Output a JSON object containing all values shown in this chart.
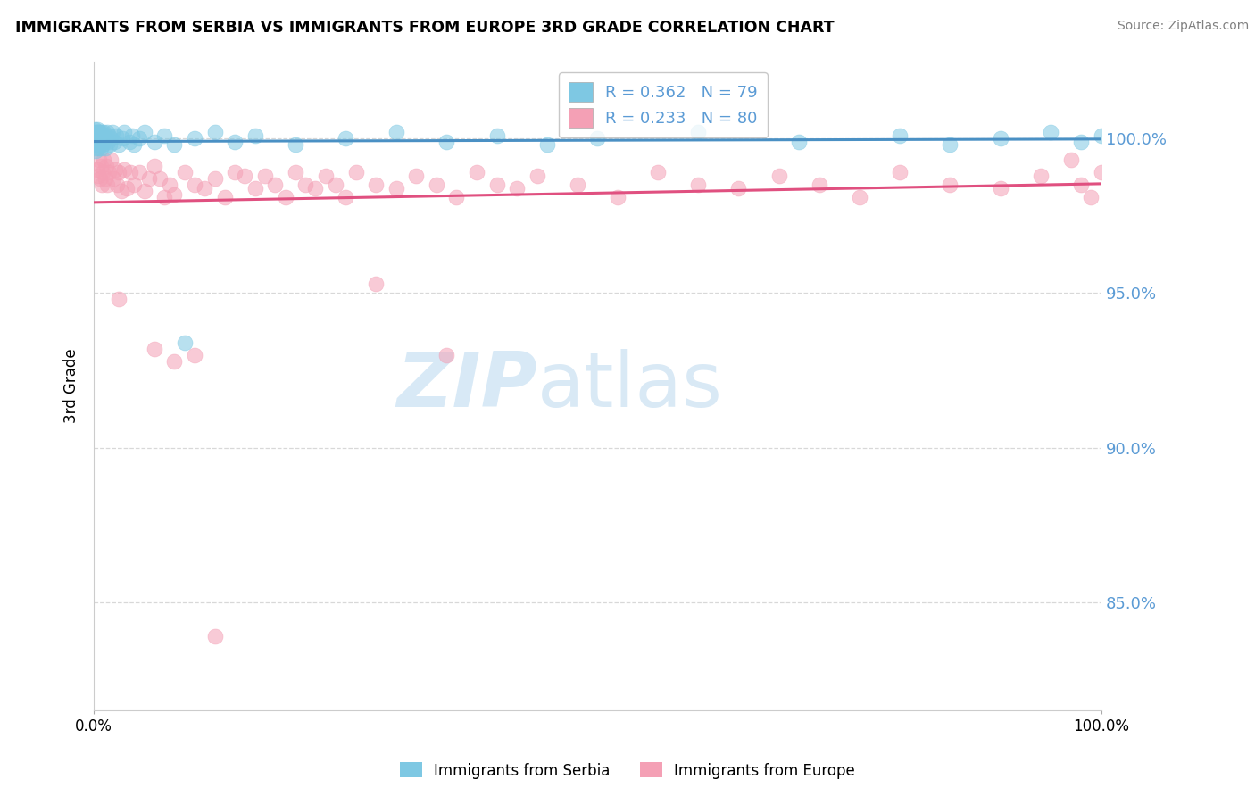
{
  "title": "IMMIGRANTS FROM SERBIA VS IMMIGRANTS FROM EUROPE 3RD GRADE CORRELATION CHART",
  "source": "Source: ZipAtlas.com",
  "ylabel": "3rd Grade",
  "legend_blue_label": "Immigrants from Serbia",
  "legend_pink_label": "Immigrants from Europe",
  "R_blue": 0.362,
  "N_blue": 79,
  "R_pink": 0.233,
  "N_pink": 80,
  "blue_color": "#7ec8e3",
  "pink_color": "#f4a0b5",
  "blue_line_color": "#4a90c4",
  "pink_line_color": "#e05080",
  "ylim": [
    0.815,
    1.025
  ],
  "xlim": [
    0.0,
    1.0
  ],
  "ytick_vals": [
    0.85,
    0.9,
    0.95,
    1.0
  ],
  "ytick_labels": [
    "85.0%",
    "90.0%",
    "95.0%",
    "100.0%"
  ],
  "grid_color": "#d8d8d8",
  "watermark_ZIP": "ZIP",
  "watermark_atlas": "atlas",
  "blue_x": [
    0.001,
    0.001,
    0.001,
    0.001,
    0.001,
    0.002,
    0.002,
    0.002,
    0.002,
    0.002,
    0.002,
    0.003,
    0.003,
    0.003,
    0.003,
    0.003,
    0.003,
    0.004,
    0.004,
    0.004,
    0.004,
    0.004,
    0.005,
    0.005,
    0.005,
    0.005,
    0.006,
    0.006,
    0.006,
    0.007,
    0.007,
    0.007,
    0.008,
    0.008,
    0.009,
    0.009,
    0.01,
    0.01,
    0.011,
    0.012,
    0.013,
    0.014,
    0.015,
    0.016,
    0.017,
    0.018,
    0.02,
    0.022,
    0.025,
    0.028,
    0.03,
    0.035,
    0.038,
    0.04,
    0.045,
    0.05,
    0.06,
    0.07,
    0.08,
    0.09,
    0.1,
    0.12,
    0.14,
    0.16,
    0.2,
    0.25,
    0.3,
    0.35,
    0.4,
    0.45,
    0.5,
    0.6,
    0.7,
    0.8,
    0.85,
    0.9,
    0.95,
    0.98,
    1.0
  ],
  "blue_y": [
    0.998,
    1.002,
    0.999,
    1.001,
    1.003,
    0.997,
    1.0,
    1.002,
    0.999,
    1.001,
    0.996,
    1.0,
    1.002,
    0.998,
    1.001,
    0.999,
    1.003,
    0.998,
    1.001,
    0.999,
    1.002,
    0.997,
    1.0,
    1.002,
    0.999,
    1.001,
    0.998,
    1.0,
    1.002,
    0.999,
    1.001,
    0.997,
    1.0,
    1.002,
    0.998,
    1.001,
    0.999,
    1.002,
    0.997,
    1.0,
    1.002,
    0.999,
    1.001,
    0.998,
    1.0,
    1.002,
    0.999,
    1.001,
    0.998,
    1.0,
    1.002,
    0.999,
    1.001,
    0.998,
    1.0,
    1.002,
    0.999,
    1.001,
    0.998,
    0.934,
    1.0,
    1.002,
    0.999,
    1.001,
    0.998,
    1.0,
    1.002,
    0.999,
    1.001,
    0.998,
    1.0,
    1.002,
    0.999,
    1.001,
    0.998,
    1.0,
    1.002,
    0.999,
    1.001
  ],
  "pink_x": [
    0.003,
    0.004,
    0.005,
    0.006,
    0.007,
    0.008,
    0.009,
    0.01,
    0.011,
    0.012,
    0.013,
    0.015,
    0.017,
    0.019,
    0.021,
    0.023,
    0.025,
    0.027,
    0.03,
    0.033,
    0.036,
    0.04,
    0.045,
    0.05,
    0.055,
    0.06,
    0.065,
    0.07,
    0.075,
    0.08,
    0.09,
    0.1,
    0.11,
    0.12,
    0.13,
    0.14,
    0.15,
    0.16,
    0.17,
    0.18,
    0.19,
    0.2,
    0.21,
    0.22,
    0.23,
    0.24,
    0.25,
    0.26,
    0.28,
    0.3,
    0.32,
    0.34,
    0.36,
    0.38,
    0.4,
    0.42,
    0.44,
    0.48,
    0.52,
    0.56,
    0.6,
    0.64,
    0.68,
    0.72,
    0.76,
    0.8,
    0.85,
    0.9,
    0.94,
    0.97,
    0.98,
    0.99,
    1.0,
    0.28,
    0.35,
    0.025,
    0.06,
    0.08,
    0.1,
    0.12
  ],
  "pink_y": [
    0.99,
    0.988,
    0.993,
    0.987,
    0.991,
    0.985,
    0.989,
    0.993,
    0.987,
    0.991,
    0.985,
    0.989,
    0.993,
    0.987,
    0.99,
    0.985,
    0.989,
    0.983,
    0.99,
    0.984,
    0.989,
    0.985,
    0.989,
    0.983,
    0.987,
    0.991,
    0.987,
    0.981,
    0.985,
    0.982,
    0.989,
    0.985,
    0.984,
    0.987,
    0.981,
    0.989,
    0.988,
    0.984,
    0.988,
    0.985,
    0.981,
    0.989,
    0.985,
    0.984,
    0.988,
    0.985,
    0.981,
    0.989,
    0.985,
    0.984,
    0.988,
    0.985,
    0.981,
    0.989,
    0.985,
    0.984,
    0.988,
    0.985,
    0.981,
    0.989,
    0.985,
    0.984,
    0.988,
    0.985,
    0.981,
    0.989,
    0.985,
    0.984,
    0.988,
    0.993,
    0.985,
    0.981,
    0.989,
    0.953,
    0.93,
    0.948,
    0.932,
    0.928,
    0.93,
    0.839
  ]
}
